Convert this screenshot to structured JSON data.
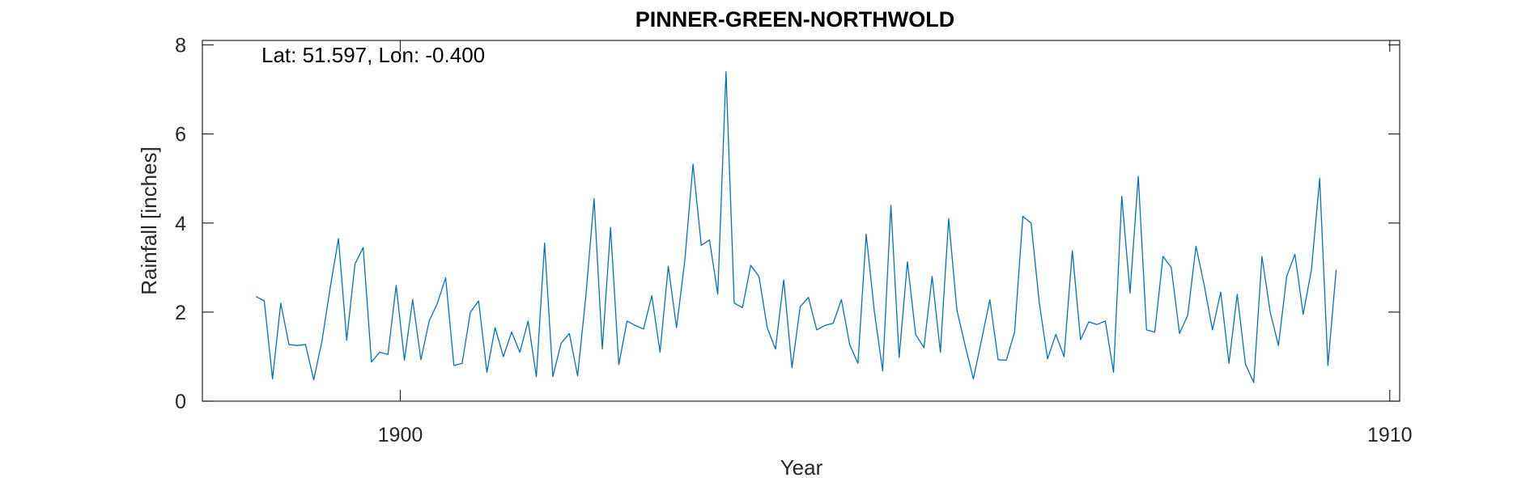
{
  "colors": {
    "series": "#0072BD",
    "axis": "#262626",
    "background": "#ffffff"
  },
  "chart_data": {
    "type": "line",
    "title": "PINNER-GREEN-NORTHWOLD",
    "annotation": "Lat: 51.597, Lon: -0.400",
    "xlabel": "Year",
    "ylabel": "Rainfall [inches]",
    "xlim": [
      1898,
      1910.1
    ],
    "ylim": [
      0,
      8.1
    ],
    "xticks": [
      1900,
      1910
    ],
    "yticks": [
      0,
      2,
      4,
      6,
      8
    ],
    "grid": false,
    "series": [
      {
        "x_start": 1898.542,
        "x_step": 0.08333,
        "values": [
          2.35,
          2.25,
          0.5,
          2.2,
          1.27,
          1.25,
          1.27,
          0.48,
          1.35,
          2.55,
          3.65,
          1.37,
          3.08,
          3.45,
          0.88,
          1.1,
          1.05,
          2.6,
          0.92,
          2.28,
          0.93,
          1.8,
          2.2,
          2.77,
          0.8,
          0.85,
          2.0,
          2.25,
          0.65,
          1.65,
          1.0,
          1.55,
          1.1,
          1.8,
          0.55,
          3.55,
          0.55,
          1.3,
          1.52,
          0.57,
          2.35,
          4.55,
          1.17,
          3.9,
          0.82,
          1.8,
          1.7,
          1.62,
          2.37,
          1.1,
          3.03,
          1.65,
          3.15,
          5.32,
          3.5,
          3.62,
          2.4,
          7.4,
          2.2,
          2.1,
          3.05,
          2.8,
          1.65,
          1.17,
          2.72,
          0.75,
          2.12,
          2.33,
          1.6,
          1.7,
          1.75,
          2.28,
          1.27,
          0.85,
          3.75,
          2.0,
          0.68,
          4.4,
          0.98,
          3.13,
          1.5,
          1.2,
          2.8,
          1.1,
          4.1,
          2.05,
          1.25,
          0.5,
          1.38,
          2.28,
          0.93,
          0.92,
          1.55,
          4.15,
          4.0,
          2.2,
          0.95,
          1.5,
          1.0,
          3.38,
          1.38,
          1.78,
          1.72,
          1.8,
          0.65,
          4.6,
          2.43,
          5.05,
          1.6,
          1.55,
          3.25,
          3.0,
          1.52,
          1.93,
          3.48,
          2.6,
          1.6,
          2.45,
          0.85,
          2.4,
          0.83,
          0.42,
          3.25,
          2.0,
          1.25,
          2.8,
          3.3,
          1.95,
          2.95,
          5.0,
          0.8,
          2.95
        ]
      }
    ]
  }
}
